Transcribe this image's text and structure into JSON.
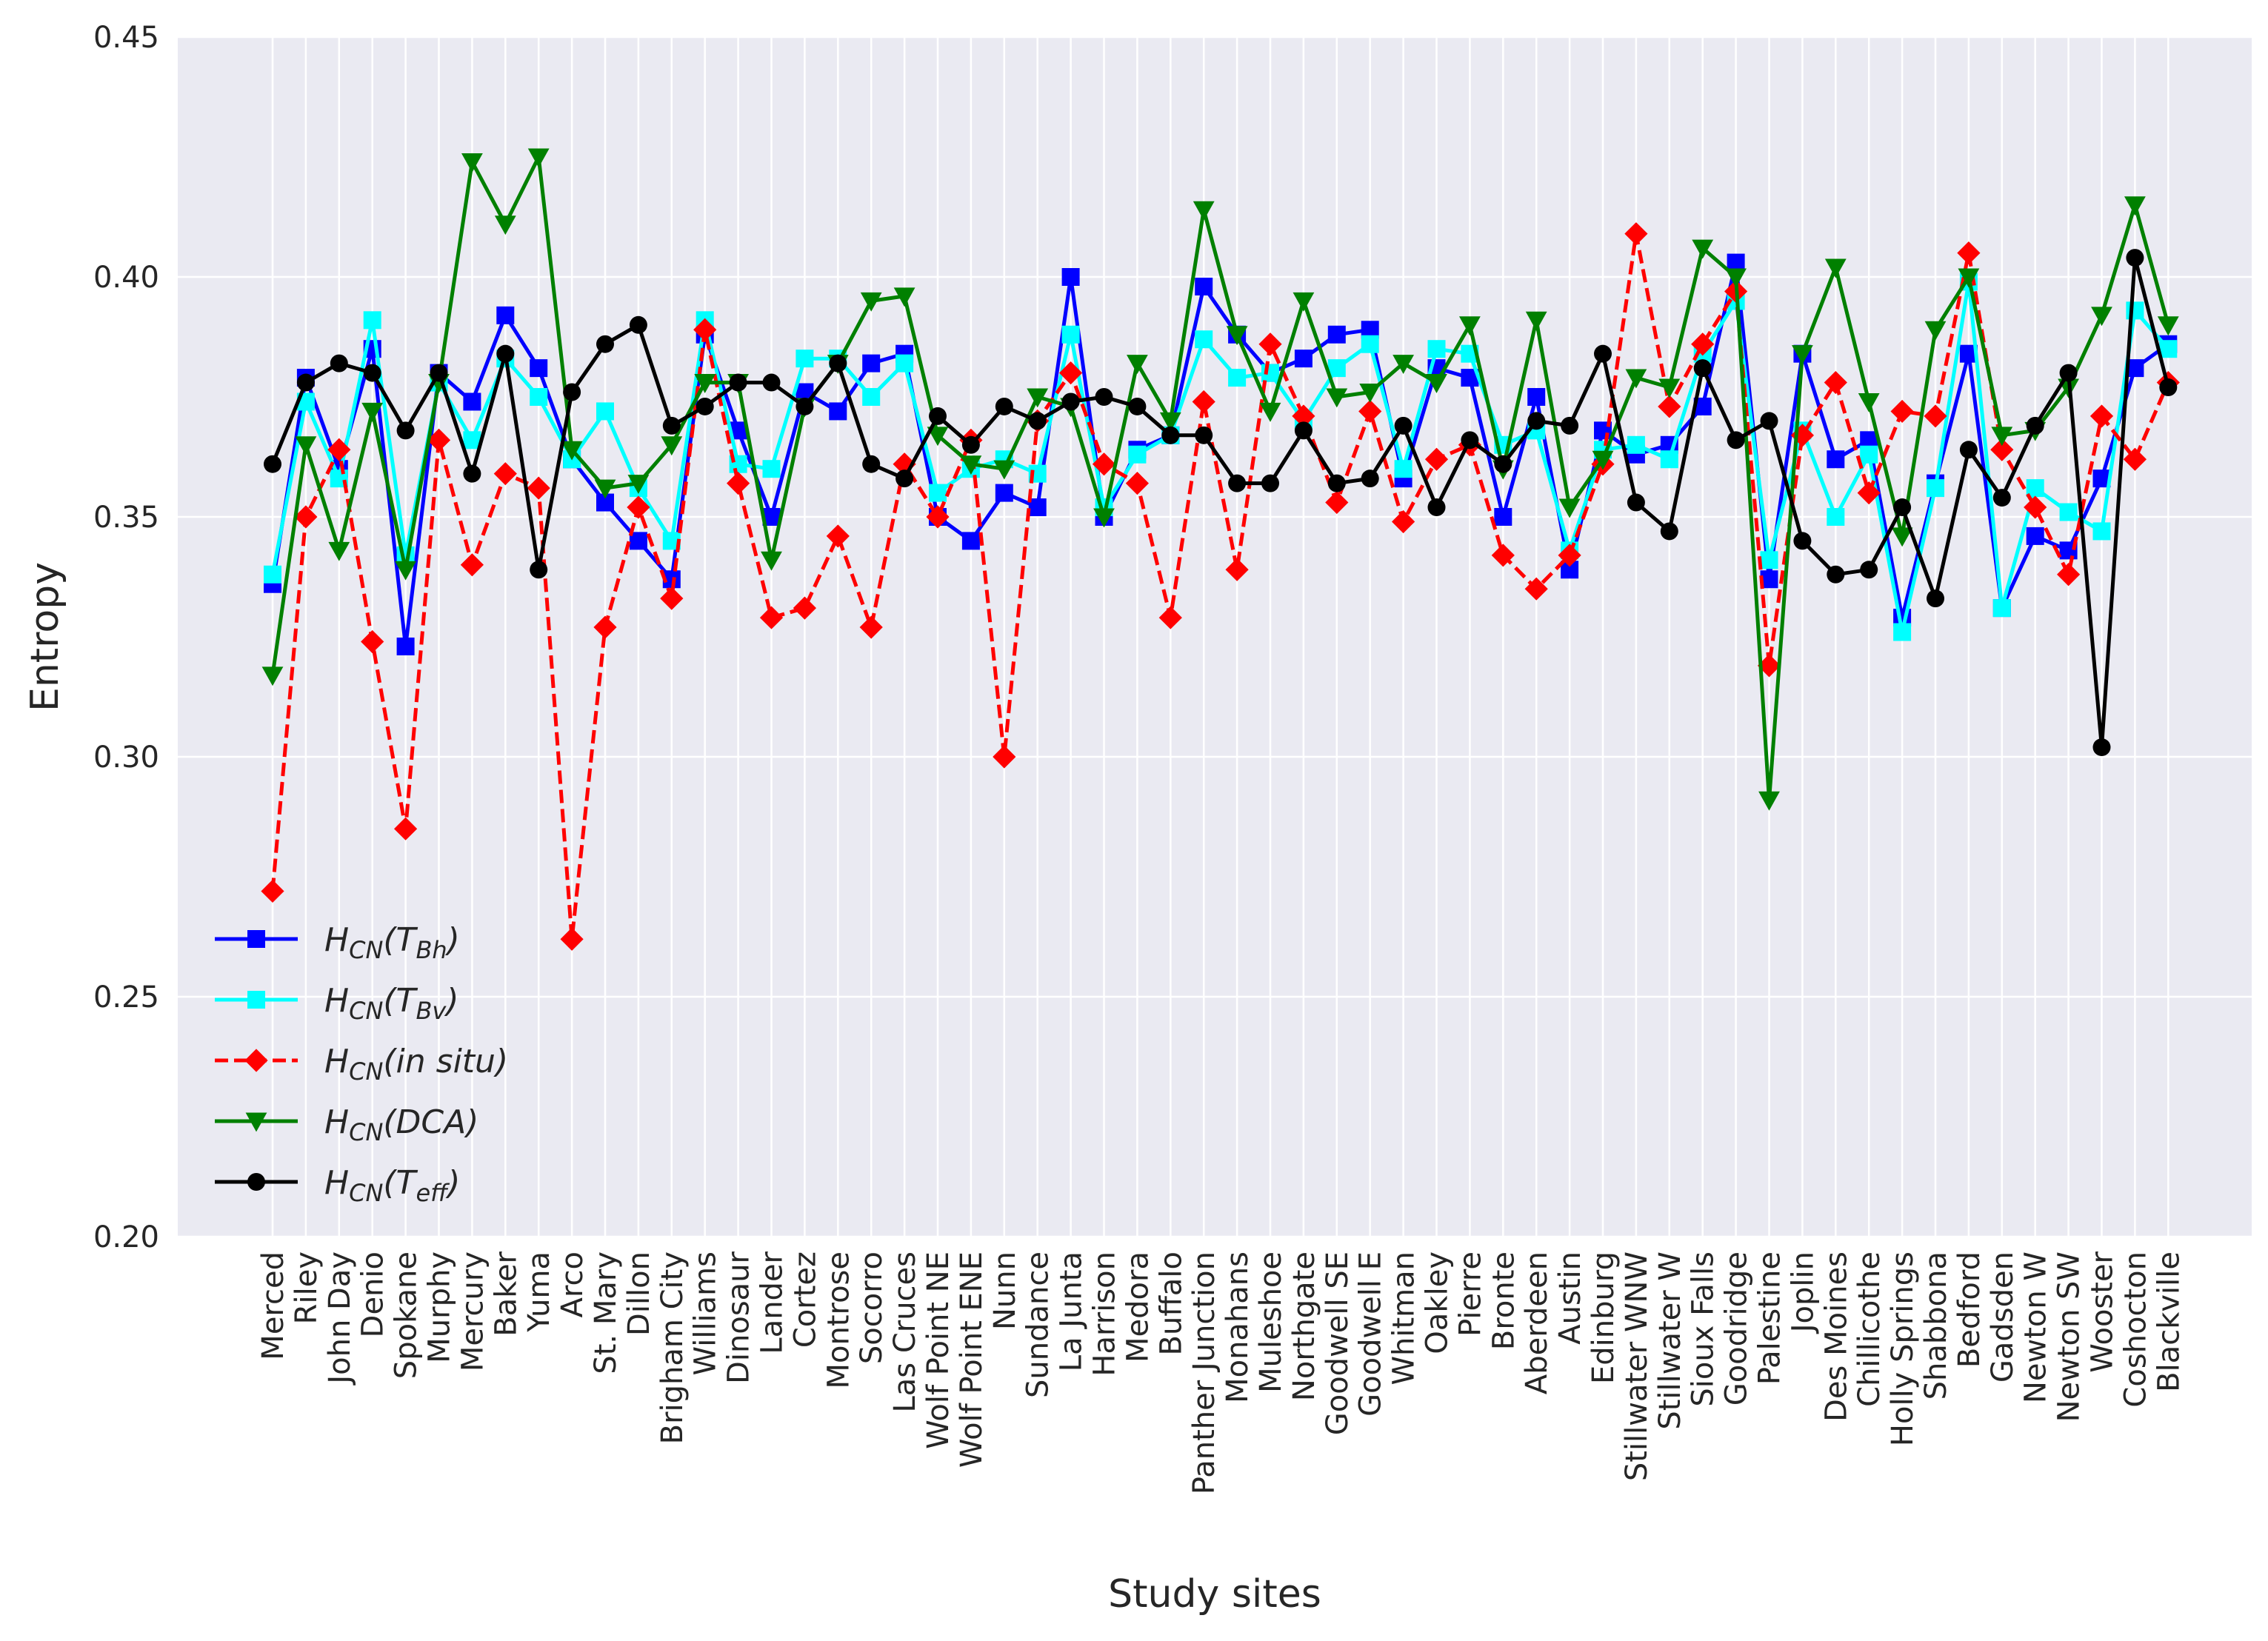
{
  "chart_data": {
    "type": "line",
    "xlabel": "Study sites",
    "ylabel": "Entropy",
    "ylim": [
      0.2,
      0.45
    ],
    "yticks": [
      "0.20",
      "0.25",
      "0.30",
      "0.35",
      "0.40",
      "0.45"
    ],
    "grid": true,
    "legend_position": "lower-left",
    "categories": [
      "Merced",
      "Riley",
      "John Day",
      "Denio",
      "Spokane",
      "Murphy",
      "Mercury",
      "Baker",
      "Yuma",
      "Arco",
      "St. Mary",
      "Dillon",
      "Brigham City",
      "Williams",
      "Dinosaur",
      "Lander",
      "Cortez",
      "Montrose",
      "Socorro",
      "Las Cruces",
      "Wolf Point NE",
      "Wolf Point ENE",
      "Nunn",
      "Sundance",
      "La Junta",
      "Harrison",
      "Medora",
      "Buffalo",
      "Panther Junction",
      "Monahans",
      "Muleshoe",
      "Northgate",
      "Goodwell SE",
      "Goodwell E",
      "Whitman",
      "Oakley",
      "Pierre",
      "Bronte",
      "Aberdeen",
      "Austin",
      "Edinburg",
      "Stillwater WNW",
      "Stillwater W",
      "Sioux Falls",
      "Goodridge",
      "Palestine",
      "Joplin",
      "Des Moines",
      "Chillicothe",
      "Holly Springs",
      "Shabbona",
      "Bedford",
      "Gadsden",
      "Newton W",
      "Newton SW",
      "Wooster",
      "Coshocton",
      "Blackville"
    ],
    "series": [
      {
        "name": "H_CN(T_Bh)",
        "label_main": "H",
        "label_sub1": "CN",
        "label_paren": "T",
        "label_sub2": "Bh",
        "color": "#0000ff",
        "marker": "square",
        "dash": "solid",
        "values": [
          0.336,
          0.379,
          0.36,
          0.385,
          0.323,
          0.38,
          0.374,
          0.392,
          0.381,
          0.362,
          0.353,
          0.345,
          0.337,
          0.388,
          0.368,
          0.35,
          0.376,
          0.372,
          0.382,
          0.384,
          0.35,
          0.345,
          0.355,
          0.352,
          0.4,
          0.35,
          0.364,
          0.367,
          0.398,
          0.388,
          0.38,
          0.383,
          0.388,
          0.389,
          0.358,
          0.381,
          0.379,
          0.35,
          0.375,
          0.339,
          0.368,
          0.363,
          0.365,
          0.373,
          0.403,
          0.337,
          0.384,
          0.362,
          0.366,
          0.329,
          0.357,
          0.384,
          0.331,
          0.346,
          0.343,
          0.358,
          0.381,
          0.386
        ]
      },
      {
        "name": "H_CN(T_Bv)",
        "label_main": "H",
        "label_sub1": "CN",
        "label_paren": "T",
        "label_sub2": "Bv",
        "color": "#00ffff",
        "marker": "square",
        "dash": "solid",
        "values": [
          0.338,
          0.374,
          0.358,
          0.391,
          0.342,
          0.378,
          0.366,
          0.383,
          0.375,
          0.362,
          0.372,
          0.356,
          0.345,
          0.391,
          0.361,
          0.36,
          0.383,
          0.383,
          0.375,
          0.382,
          0.355,
          0.36,
          0.362,
          0.359,
          0.388,
          0.352,
          0.363,
          0.367,
          0.387,
          0.379,
          0.38,
          0.37,
          0.381,
          0.386,
          0.36,
          0.385,
          0.384,
          0.365,
          0.368,
          0.343,
          0.364,
          0.365,
          0.362,
          0.384,
          0.395,
          0.341,
          0.368,
          0.35,
          0.363,
          0.326,
          0.356,
          0.399,
          0.331,
          0.356,
          0.351,
          0.347,
          0.393,
          0.385
        ]
      },
      {
        "name": "H_CN(in situ)",
        "label_main": "H",
        "label_sub1": "CN",
        "label_paren": "in situ",
        "label_sub2": "",
        "color": "#ff0000",
        "marker": "diamond",
        "dash": "dashed",
        "values": [
          0.272,
          0.35,
          0.364,
          0.324,
          0.285,
          0.366,
          0.34,
          0.359,
          0.356,
          0.262,
          0.327,
          0.352,
          0.333,
          0.389,
          0.357,
          0.329,
          0.331,
          0.346,
          0.327,
          0.361,
          0.35,
          0.366,
          0.3,
          0.37,
          0.38,
          0.361,
          0.357,
          0.329,
          0.374,
          0.339,
          0.386,
          0.371,
          0.353,
          0.372,
          0.349,
          0.362,
          0.365,
          0.342,
          0.335,
          0.342,
          0.361,
          0.409,
          0.373,
          0.386,
          0.397,
          0.319,
          0.367,
          0.378,
          0.355,
          0.372,
          0.371,
          0.405,
          0.364,
          0.352,
          0.338,
          0.371,
          0.362,
          0.378
        ]
      },
      {
        "name": "H_CN(DCA)",
        "label_main": "H",
        "label_sub1": "CN",
        "label_paren": "DCA",
        "label_sub2": "",
        "color": "#008000",
        "marker": "triangle-down",
        "dash": "solid",
        "values": [
          0.317,
          0.365,
          0.343,
          0.372,
          0.339,
          0.378,
          0.424,
          0.411,
          0.425,
          0.364,
          0.356,
          0.357,
          0.365,
          0.378,
          0.378,
          0.341,
          0.373,
          0.382,
          0.395,
          0.396,
          0.367,
          0.361,
          0.36,
          0.375,
          0.373,
          0.35,
          0.382,
          0.37,
          0.414,
          0.388,
          0.372,
          0.395,
          0.375,
          0.376,
          0.382,
          0.378,
          0.39,
          0.36,
          0.391,
          0.352,
          0.362,
          0.379,
          0.377,
          0.406,
          0.4,
          0.291,
          0.384,
          0.402,
          0.374,
          0.346,
          0.389,
          0.4,
          0.367,
          0.368,
          0.377,
          0.392,
          0.415,
          0.39
        ]
      },
      {
        "name": "H_CN(T_eff)",
        "label_main": "H",
        "label_sub1": "CN",
        "label_paren": "T",
        "label_sub2": "eff",
        "color": "#000000",
        "marker": "circle",
        "dash": "solid",
        "values": [
          0.361,
          0.378,
          0.382,
          0.38,
          0.368,
          0.38,
          0.359,
          0.384,
          0.339,
          0.376,
          0.386,
          0.39,
          0.369,
          0.373,
          0.378,
          0.378,
          0.373,
          0.382,
          0.361,
          0.358,
          0.371,
          0.365,
          0.373,
          0.37,
          0.374,
          0.375,
          0.373,
          0.367,
          0.367,
          0.357,
          0.357,
          0.368,
          0.357,
          0.358,
          0.369,
          0.352,
          0.366,
          0.361,
          0.37,
          0.369,
          0.384,
          0.353,
          0.347,
          0.381,
          0.366,
          0.37,
          0.345,
          0.338,
          0.339,
          0.352,
          0.333,
          0.364,
          0.354,
          0.369,
          0.38,
          0.302,
          0.404,
          0.377
        ]
      }
    ]
  },
  "colors": {
    "plot_background": "#eaeaf2",
    "grid": "#ffffff"
  }
}
